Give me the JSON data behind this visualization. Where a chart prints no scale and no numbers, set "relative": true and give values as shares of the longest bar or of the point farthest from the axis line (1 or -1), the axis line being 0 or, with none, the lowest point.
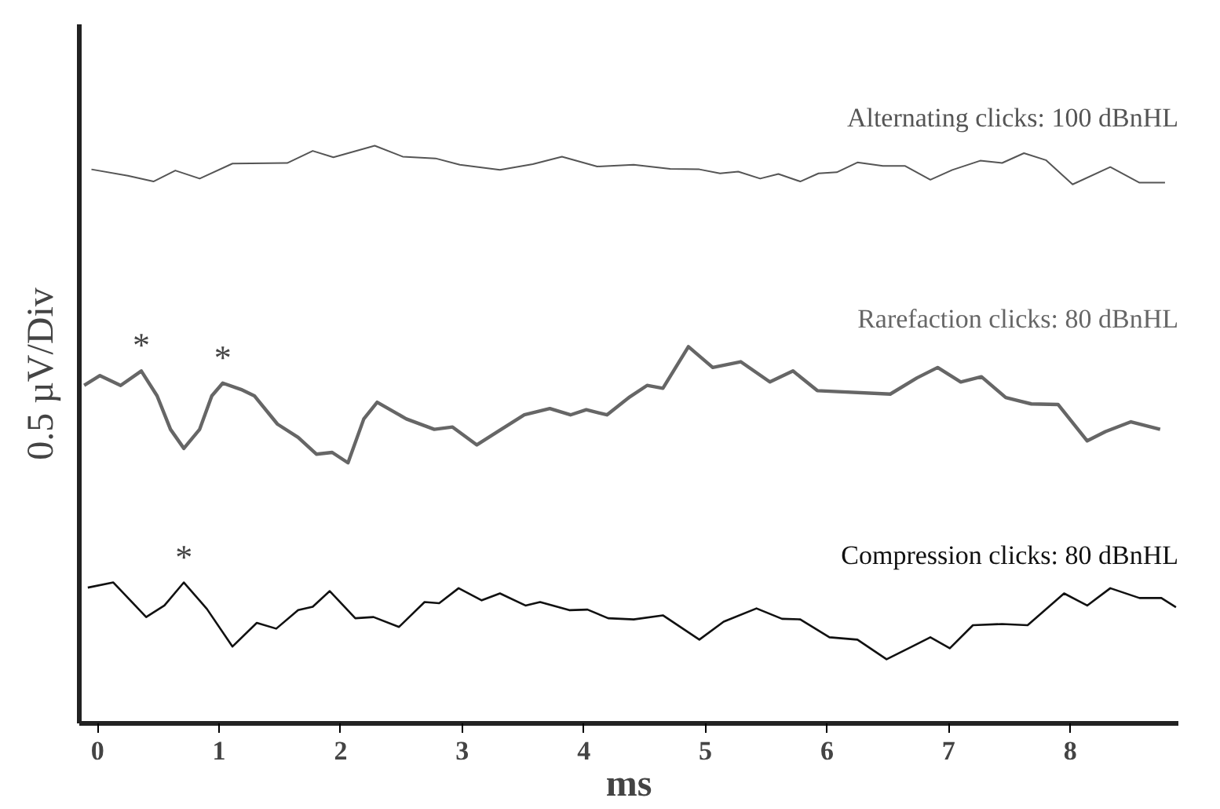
{
  "chart_data": {
    "type": "line",
    "relative": true,
    "xlabel": "ms",
    "ylabel": "0.5 µV/Div",
    "xlim": [
      -0.15,
      8.89
    ],
    "xticks": [
      0,
      1,
      2,
      3,
      4,
      5,
      6,
      7,
      8
    ],
    "grid": false,
    "series": [
      {
        "name": "Alternating clicks: 100 dBnHL",
        "color": "#555555",
        "x": [
          -0.05,
          0.25,
          0.46,
          0.64,
          0.84,
          1.11,
          1.56,
          1.77,
          1.94,
          2.28,
          2.51,
          2.78,
          2.98,
          3.31,
          3.58,
          3.82,
          4.11,
          4.41,
          4.71,
          4.95,
          5.12,
          5.27,
          5.45,
          5.6,
          5.78,
          5.93,
          6.08,
          6.25,
          6.46,
          6.64,
          6.85,
          7.03,
          7.26,
          7.44,
          7.62,
          7.8,
          8.02,
          8.33,
          8.57,
          8.78
        ],
        "values": [
          0.959,
          0.948,
          0.938,
          0.957,
          0.943,
          0.969,
          0.97,
          0.991,
          0.98,
          1.0,
          0.981,
          0.978,
          0.967,
          0.958,
          0.968,
          0.981,
          0.964,
          0.967,
          0.96,
          0.959,
          0.952,
          0.955,
          0.943,
          0.951,
          0.938,
          0.952,
          0.954,
          0.971,
          0.965,
          0.965,
          0.941,
          0.958,
          0.974,
          0.97,
          0.987,
          0.975,
          0.933,
          0.963,
          0.936,
          0.936
        ]
      },
      {
        "name": "Rarefaction clicks: 80 dBnHL",
        "color": "#666666",
        "x": [
          -0.11,
          0.02,
          0.19,
          0.36,
          0.49,
          0.6,
          0.71,
          0.84,
          0.94,
          1.03,
          1.18,
          1.29,
          1.48,
          1.65,
          1.8,
          1.93,
          2.06,
          2.19,
          2.3,
          2.54,
          2.77,
          2.92,
          3.12,
          3.29,
          3.51,
          3.72,
          3.89,
          4.02,
          4.19,
          4.37,
          4.52,
          4.65,
          4.86,
          5.06,
          5.29,
          5.53,
          5.72,
          5.92,
          6.52,
          6.74,
          6.91,
          7.1,
          7.27,
          7.47,
          7.68,
          7.9,
          8.14,
          8.29,
          8.5,
          8.74
        ],
        "values": [
          0.585,
          0.602,
          0.585,
          0.61,
          0.567,
          0.509,
          0.476,
          0.509,
          0.567,
          0.589,
          0.578,
          0.567,
          0.518,
          0.495,
          0.466,
          0.469,
          0.451,
          0.527,
          0.556,
          0.527,
          0.509,
          0.513,
          0.482,
          0.505,
          0.534,
          0.545,
          0.534,
          0.543,
          0.534,
          0.564,
          0.585,
          0.58,
          0.652,
          0.616,
          0.626,
          0.591,
          0.61,
          0.576,
          0.57,
          0.598,
          0.616,
          0.591,
          0.6,
          0.564,
          0.553,
          0.552,
          0.489,
          0.505,
          0.522,
          0.509
        ]
      },
      {
        "name": "Compression clicks: 80 dBnHL",
        "color": "#111111",
        "x": [
          -0.08,
          0.13,
          0.4,
          0.55,
          0.71,
          0.9,
          1.11,
          1.31,
          1.47,
          1.65,
          1.77,
          1.91,
          2.12,
          2.27,
          2.48,
          2.69,
          2.81,
          2.97,
          3.16,
          3.31,
          3.52,
          3.64,
          3.88,
          4.03,
          4.2,
          4.41,
          4.65,
          4.95,
          5.15,
          5.42,
          5.63,
          5.78,
          6.02,
          6.25,
          6.49,
          6.7,
          6.85,
          7.01,
          7.2,
          7.44,
          7.65,
          7.95,
          8.14,
          8.33,
          8.57,
          8.75,
          8.87
        ],
        "values": [
          0.235,
          0.244,
          0.184,
          0.204,
          0.244,
          0.198,
          0.133,
          0.174,
          0.164,
          0.196,
          0.202,
          0.229,
          0.182,
          0.184,
          0.167,
          0.21,
          0.208,
          0.234,
          0.213,
          0.225,
          0.204,
          0.21,
          0.196,
          0.197,
          0.182,
          0.18,
          0.187,
          0.145,
          0.176,
          0.199,
          0.181,
          0.18,
          0.149,
          0.145,
          0.111,
          0.133,
          0.149,
          0.13,
          0.17,
          0.172,
          0.17,
          0.225,
          0.204,
          0.234,
          0.217,
          0.217,
          0.201
        ]
      }
    ],
    "annotations": [
      {
        "text": "*",
        "x": 0.36,
        "y": 0.61
      },
      {
        "text": "*",
        "x": 1.03,
        "y": 0.589
      },
      {
        "text": "*",
        "x": 0.71,
        "y": 0.244
      }
    ]
  }
}
